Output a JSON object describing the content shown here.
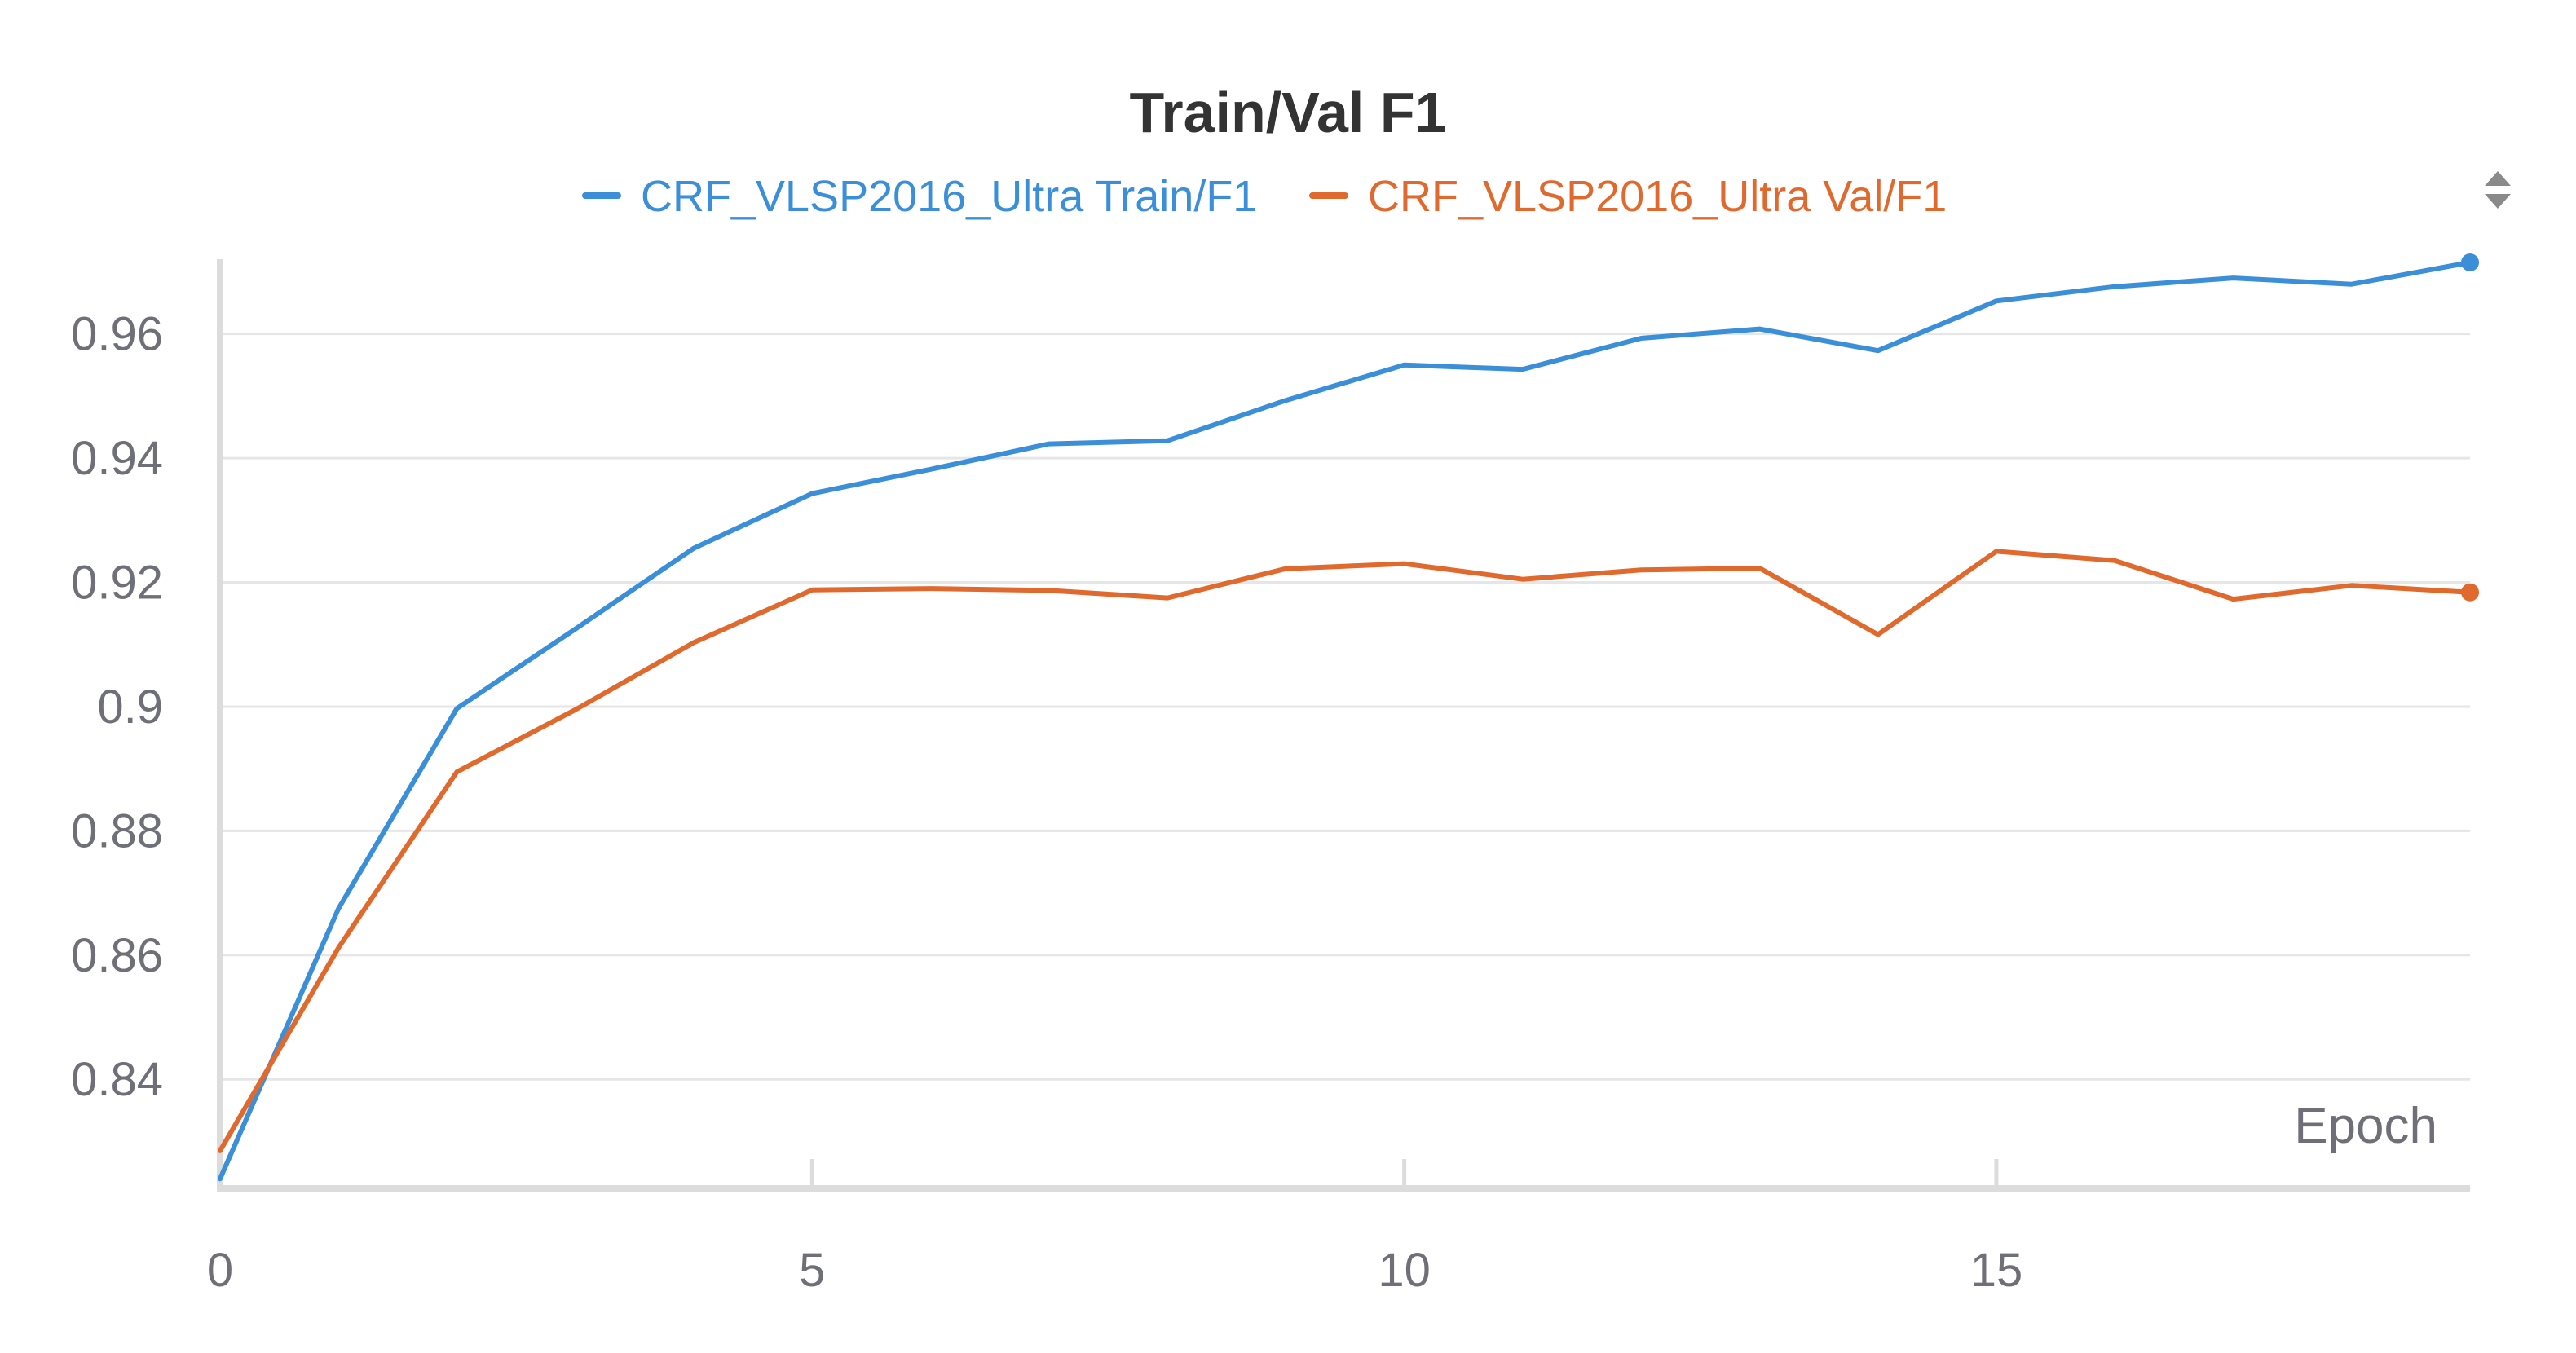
{
  "chart_data": {
    "type": "line",
    "title": "Train/Val F1",
    "xlabel": "Epoch",
    "ylabel": "",
    "xlim": [
      0,
      19
    ],
    "ylim": [
      0.8235,
      0.9715
    ],
    "x_ticks": [
      0,
      5,
      10,
      15
    ],
    "y_ticks": [
      0.84,
      0.86,
      0.88,
      0.9,
      0.92,
      0.94,
      0.96
    ],
    "y_tick_labels": [
      "0.84",
      "0.86",
      "0.88",
      "0.9",
      "0.92",
      "0.94",
      "0.96"
    ],
    "grid": true,
    "legend": "top-center",
    "x": [
      0,
      1,
      2,
      3,
      4,
      5,
      6,
      7,
      8,
      9,
      10,
      11,
      12,
      13,
      14,
      15,
      16,
      17,
      18,
      19
    ],
    "series": [
      {
        "name": "CRF_VLSP2016_Ultra Train/F1",
        "color": "#3b8ed8",
        "values": [
          0.824,
          0.8675,
          0.8997,
          0.9125,
          0.9255,
          0.9343,
          0.9382,
          0.9423,
          0.9428,
          0.9493,
          0.955,
          0.9543,
          0.9593,
          0.9608,
          0.9573,
          0.9653,
          0.9676,
          0.969,
          0.968,
          0.9715
        ]
      },
      {
        "name": "CRF_VLSP2016_Ultra Val/F1",
        "color": "#e06a2e",
        "values": [
          0.8285,
          0.8612,
          0.8895,
          0.8995,
          0.9103,
          0.9188,
          0.919,
          0.9187,
          0.9175,
          0.9222,
          0.923,
          0.9205,
          0.922,
          0.9223,
          0.9116,
          0.925,
          0.9235,
          0.9173,
          0.9195,
          0.9184
        ]
      }
    ]
  },
  "controls": {
    "legend_scroll_icon": "up-down-arrows-icon"
  }
}
